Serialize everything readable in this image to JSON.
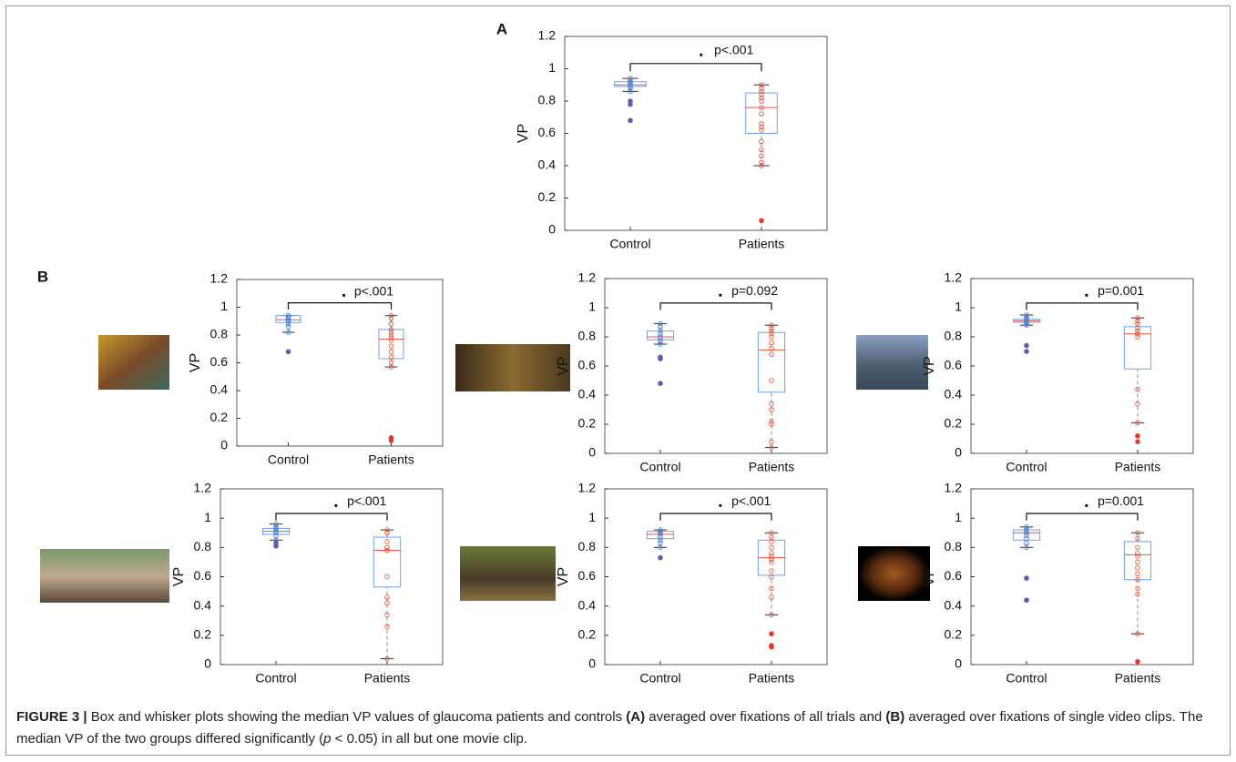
{
  "panel_labels": [
    "A",
    "B"
  ],
  "chart_data": [
    {
      "type": "box",
      "categories": [
        "Control",
        "Patients"
      ],
      "ylabel": "VP",
      "annotation": "p<.001",
      "ylim": [
        0,
        1.2
      ],
      "yticks": [
        0,
        0.2,
        0.4,
        0.6,
        0.8,
        1,
        1.2
      ],
      "box_color": "#6f9ff0",
      "median_color": "#e8553a",
      "boxes": [
        {
          "whisker_low": 0.86,
          "q1": 0.89,
          "median": 0.9,
          "q3": 0.92,
          "whisker_high": 0.94,
          "point_color": "#4a7fd4",
          "outlier_color": "#5a5fb0",
          "points": [
            0.94,
            0.93,
            0.92,
            0.91,
            0.9,
            0.89,
            0.88,
            0.86
          ],
          "outliers": [
            0.8,
            0.78,
            0.68
          ]
        },
        {
          "whisker_low": 0.4,
          "q1": 0.6,
          "median": 0.76,
          "q3": 0.85,
          "whisker_high": 0.9,
          "point_color": "#e8553a",
          "outlier_color": "#e03a2a",
          "points": [
            0.9,
            0.88,
            0.86,
            0.84,
            0.82,
            0.8,
            0.76,
            0.72,
            0.66,
            0.64,
            0.62,
            0.55,
            0.5,
            0.46,
            0.42,
            0.4
          ],
          "outliers": [
            0.06
          ]
        }
      ]
    },
    {
      "type": "box",
      "categories": [
        "Control",
        "Patients"
      ],
      "ylabel": "VP",
      "annotation": "p<.001",
      "ylim": [
        0,
        1.2
      ],
      "yticks": [
        0,
        0.2,
        0.4,
        0.6,
        0.8,
        1,
        1.2
      ],
      "box_color": "#6f9ff0",
      "median_color": "#e8553a",
      "boxes": [
        {
          "whisker_low": 0.82,
          "q1": 0.89,
          "median": 0.91,
          "q3": 0.94,
          "whisker_high": 0.94,
          "point_color": "#4a7fd4",
          "outlier_color": "#5a5fb0",
          "points": [
            0.94,
            0.93,
            0.92,
            0.91,
            0.9,
            0.88,
            0.86,
            0.82
          ],
          "outliers": [
            0.68
          ]
        },
        {
          "whisker_low": 0.57,
          "q1": 0.63,
          "median": 0.77,
          "q3": 0.84,
          "whisker_high": 0.94,
          "point_color": "#e8553a",
          "outlier_color": "#e03a2a",
          "points": [
            0.94,
            0.92,
            0.88,
            0.84,
            0.82,
            0.8,
            0.78,
            0.76,
            0.72,
            0.68,
            0.64,
            0.6,
            0.57
          ],
          "outliers": [
            0.06,
            0.04
          ]
        }
      ]
    },
    {
      "type": "box",
      "categories": [
        "Control",
        "Patients"
      ],
      "ylabel": "VP",
      "annotation": "p=0.092",
      "ylim": [
        0,
        1.2
      ],
      "yticks": [
        0,
        0.2,
        0.4,
        0.6,
        0.8,
        1,
        1.2
      ],
      "box_color": "#6f9ff0",
      "median_color": "#e8553a",
      "boxes": [
        {
          "whisker_low": 0.75,
          "q1": 0.78,
          "median": 0.8,
          "q3": 0.84,
          "whisker_high": 0.89,
          "point_color": "#4a7fd4",
          "outlier_color": "#5a5fb0",
          "points": [
            0.89,
            0.87,
            0.84,
            0.82,
            0.8,
            0.79,
            0.77,
            0.75
          ],
          "outliers": [
            0.66,
            0.65,
            0.48
          ]
        },
        {
          "whisker_low": 0.04,
          "q1": 0.42,
          "median": 0.71,
          "q3": 0.83,
          "whisker_high": 0.88,
          "point_color": "#e8553a",
          "outlier_color": "#e03a2a",
          "points": [
            0.88,
            0.86,
            0.84,
            0.82,
            0.8,
            0.76,
            0.72,
            0.68,
            0.5,
            0.34,
            0.3,
            0.22,
            0.2,
            0.08,
            0.04
          ],
          "outliers": []
        }
      ]
    },
    {
      "type": "box",
      "categories": [
        "Control",
        "Patients"
      ],
      "ylabel": "VP",
      "annotation": "p=0.001",
      "ylim": [
        0,
        1.2
      ],
      "yticks": [
        0,
        0.2,
        0.4,
        0.6,
        0.8,
        1,
        1.2
      ],
      "box_color": "#6f9ff0",
      "median_color": "#e8553a",
      "boxes": [
        {
          "whisker_low": 0.88,
          "q1": 0.9,
          "median": 0.91,
          "q3": 0.92,
          "whisker_high": 0.95,
          "point_color": "#4a7fd4",
          "outlier_color": "#5a5fb0",
          "points": [
            0.95,
            0.94,
            0.93,
            0.92,
            0.91,
            0.9,
            0.89,
            0.88
          ],
          "outliers": [
            0.74,
            0.7
          ]
        },
        {
          "whisker_low": 0.21,
          "q1": 0.58,
          "median": 0.82,
          "q3": 0.87,
          "whisker_high": 0.93,
          "point_color": "#e8553a",
          "outlier_color": "#e03a2a",
          "points": [
            0.93,
            0.91,
            0.89,
            0.86,
            0.84,
            0.82,
            0.8,
            0.44,
            0.34,
            0.21
          ],
          "outliers": [
            0.12,
            0.08
          ]
        }
      ]
    },
    {
      "type": "box",
      "categories": [
        "Control",
        "Patients"
      ],
      "ylabel": "VP",
      "annotation": "p<.001",
      "ylim": [
        0,
        1.2
      ],
      "yticks": [
        0,
        0.2,
        0.4,
        0.6,
        0.8,
        1,
        1.2
      ],
      "box_color": "#6f9ff0",
      "median_color": "#e8553a",
      "boxes": [
        {
          "whisker_low": 0.85,
          "q1": 0.89,
          "median": 0.91,
          "q3": 0.93,
          "whisker_high": 0.96,
          "point_color": "#4a7fd4",
          "outlier_color": "#5a5fb0",
          "points": [
            0.96,
            0.94,
            0.93,
            0.92,
            0.91,
            0.9,
            0.88,
            0.85
          ],
          "outliers": [
            0.83,
            0.81
          ]
        },
        {
          "whisker_low": 0.04,
          "q1": 0.53,
          "median": 0.78,
          "q3": 0.87,
          "whisker_high": 0.92,
          "point_color": "#e8553a",
          "outlier_color": "#e03a2a",
          "points": [
            0.92,
            0.9,
            0.84,
            0.8,
            0.78,
            0.6,
            0.46,
            0.42,
            0.34,
            0.26,
            0.04
          ],
          "outliers": []
        }
      ]
    },
    {
      "type": "box",
      "categories": [
        "Control",
        "Patients"
      ],
      "ylabel": "VP",
      "annotation": "p<.001",
      "ylim": [
        0,
        1.2
      ],
      "yticks": [
        0,
        0.2,
        0.4,
        0.6,
        0.8,
        1,
        1.2
      ],
      "box_color": "#6f9ff0",
      "median_color": "#e8553a",
      "boxes": [
        {
          "whisker_low": 0.8,
          "q1": 0.86,
          "median": 0.89,
          "q3": 0.91,
          "whisker_high": 0.92,
          "point_color": "#4a7fd4",
          "outlier_color": "#5a5fb0",
          "points": [
            0.92,
            0.91,
            0.9,
            0.89,
            0.87,
            0.85,
            0.83,
            0.8
          ],
          "outliers": [
            0.73
          ]
        },
        {
          "whisker_low": 0.34,
          "q1": 0.61,
          "median": 0.73,
          "q3": 0.85,
          "whisker_high": 0.9,
          "point_color": "#e8553a",
          "outlier_color": "#e03a2a",
          "points": [
            0.9,
            0.87,
            0.84,
            0.8,
            0.76,
            0.74,
            0.72,
            0.7,
            0.64,
            0.6,
            0.52,
            0.46,
            0.34
          ],
          "outliers": [
            0.21,
            0.13,
            0.12
          ]
        }
      ]
    },
    {
      "type": "box",
      "categories": [
        "Control",
        "Patients"
      ],
      "ylabel": "VP",
      "annotation": "p=0.001",
      "ylim": [
        0,
        1.2
      ],
      "yticks": [
        0,
        0.2,
        0.4,
        0.6,
        0.8,
        1,
        1.2
      ],
      "box_color": "#6f9ff0",
      "median_color": "#e8553a",
      "boxes": [
        {
          "whisker_low": 0.8,
          "q1": 0.85,
          "median": 0.9,
          "q3": 0.92,
          "whisker_high": 0.94,
          "point_color": "#4a7fd4",
          "outlier_color": "#5a5fb0",
          "points": [
            0.94,
            0.92,
            0.91,
            0.9,
            0.88,
            0.86,
            0.83,
            0.8
          ],
          "outliers": [
            0.59,
            0.44
          ]
        },
        {
          "whisker_low": 0.21,
          "q1": 0.58,
          "median": 0.75,
          "q3": 0.84,
          "whisker_high": 0.9,
          "point_color": "#e8553a",
          "outlier_color": "#e03a2a",
          "points": [
            0.9,
            0.86,
            0.8,
            0.76,
            0.74,
            0.7,
            0.66,
            0.62,
            0.58,
            0.52,
            0.48,
            0.21
          ],
          "outliers": [
            0.02
          ]
        }
      ]
    }
  ],
  "caption": [
    {
      "text": "FIGURE 3 |",
      "style": "bold"
    },
    {
      "text": " Box and whisker plots showing the median VP values of glaucoma patients and controls ",
      "style": "normal"
    },
    {
      "text": "(A)",
      "style": "bold"
    },
    {
      "text": " averaged over fixations of all trials and ",
      "style": "normal"
    },
    {
      "text": "(B)",
      "style": "bold"
    },
    {
      "text": " averaged over fixations of single video clips. The median VP of the two groups differed significantly (",
      "style": "normal"
    },
    {
      "text": "p",
      "style": "italic"
    },
    {
      "text": " < 0.05) in all but one movie clip.",
      "style": "normal"
    }
  ]
}
